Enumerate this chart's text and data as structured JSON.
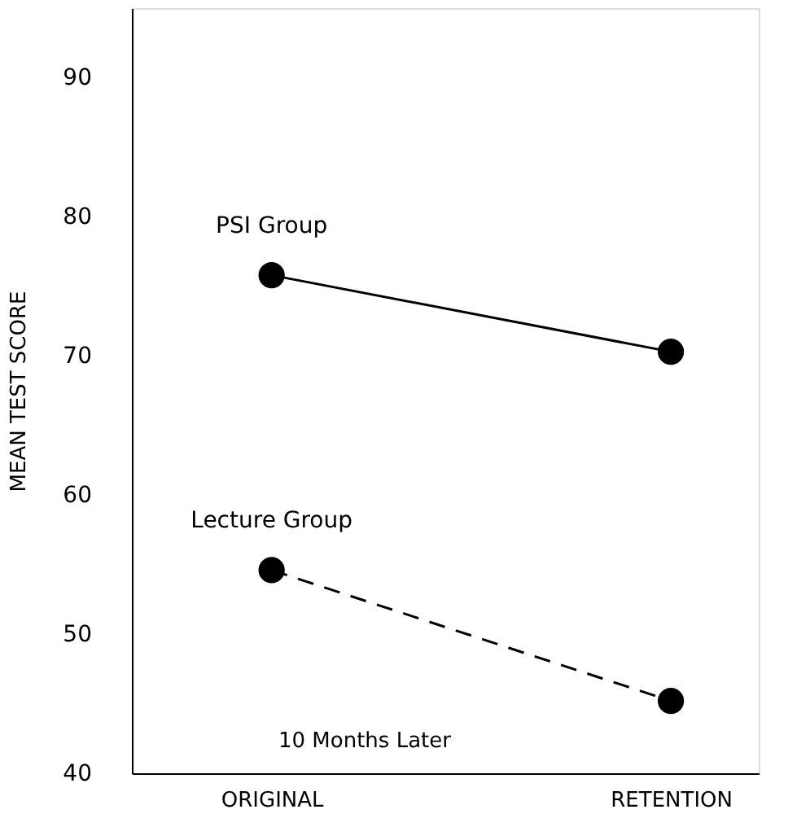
{
  "chart_data": {
    "type": "line",
    "ylabel": "MEAN TEST SCORE",
    "categories": [
      "ORIGINAL",
      "RETENTION"
    ],
    "series": [
      {
        "name": "PSI Group",
        "color": "#000000",
        "values": [
          75.8,
          70.3
        ],
        "line_style": "solid"
      },
      {
        "name": "Lecture Group",
        "color": "#000000",
        "values": [
          54.6,
          45.2
        ],
        "line_style": "dashed"
      }
    ],
    "ylim": [
      40,
      95
    ],
    "yticks": [
      40,
      50,
      60,
      70,
      80,
      90
    ],
    "marker": "circle",
    "grid": false,
    "annotations": [
      "10 Months Later"
    ]
  }
}
